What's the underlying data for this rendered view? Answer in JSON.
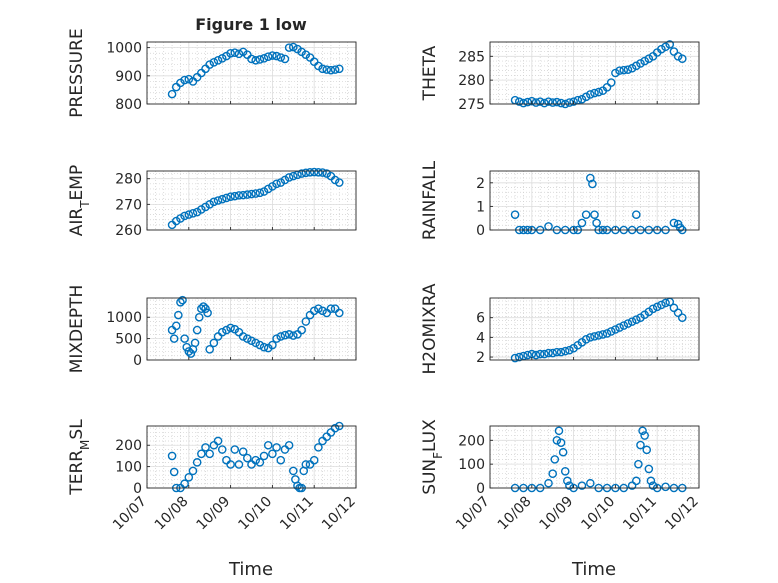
{
  "figure": {
    "title": "Figure 1 low",
    "xlabel": "Time",
    "x_ticks": [
      "10/07",
      "10/08",
      "10/09",
      "10/10",
      "10/11",
      "10/12"
    ],
    "marker_color": "#0072BD",
    "marker": "open-circle"
  },
  "chart_data": [
    {
      "type": "scatter",
      "ylabel": "PRESSURE",
      "title": "Figure 1 low",
      "xlim": [
        0,
        5
      ],
      "ylim": [
        800,
        1020
      ],
      "yticks": [
        800,
        900,
        1000
      ],
      "grid": true,
      "x": [
        0.6,
        0.7,
        0.8,
        0.9,
        1.0,
        1.1,
        1.2,
        1.3,
        1.4,
        1.5,
        1.6,
        1.7,
        1.8,
        1.9,
        2.0,
        2.1,
        2.2,
        2.3,
        2.4,
        2.5,
        2.6,
        2.7,
        2.8,
        2.9,
        3.0,
        3.1,
        3.2,
        3.3,
        3.4,
        3.5,
        3.6,
        3.7,
        3.8,
        3.9,
        4.0,
        4.1,
        4.2,
        4.3,
        4.4,
        4.5,
        4.6
      ],
      "y": [
        835,
        860,
        875,
        885,
        888,
        880,
        895,
        910,
        925,
        940,
        948,
        955,
        962,
        970,
        980,
        982,
        978,
        985,
        975,
        960,
        955,
        958,
        962,
        968,
        972,
        970,
        965,
        960,
        1000,
        1002,
        995,
        985,
        975,
        965,
        950,
        935,
        925,
        922,
        920,
        922,
        925
      ]
    },
    {
      "type": "scatter",
      "ylabel": "THETA",
      "xlim": [
        0,
        5
      ],
      "ylim": [
        275,
        288
      ],
      "yticks": [
        275,
        280,
        285
      ],
      "grid": true,
      "x": [
        0.6,
        0.7,
        0.8,
        0.9,
        1.0,
        1.1,
        1.2,
        1.3,
        1.4,
        1.5,
        1.6,
        1.7,
        1.8,
        1.9,
        2.0,
        2.1,
        2.2,
        2.3,
        2.4,
        2.5,
        2.6,
        2.7,
        2.8,
        2.9,
        3.0,
        3.1,
        3.2,
        3.3,
        3.4,
        3.5,
        3.6,
        3.7,
        3.8,
        3.9,
        4.0,
        4.1,
        4.2,
        4.3,
        4.4,
        4.5,
        4.6
      ],
      "y": [
        275.8,
        275.5,
        275.2,
        275.4,
        275.6,
        275.3,
        275.5,
        275.2,
        275.5,
        275.3,
        275.4,
        275.2,
        275.0,
        275.3,
        275.5,
        275.8,
        276.0,
        276.5,
        277.0,
        277.3,
        277.5,
        277.8,
        278.5,
        279.5,
        281.5,
        282.0,
        282.1,
        282.2,
        282.5,
        283.0,
        283.5,
        284.0,
        284.5,
        285.0,
        285.8,
        286.5,
        287.0,
        287.5,
        286.0,
        285.0,
        284.5
      ]
    },
    {
      "type": "scatter",
      "ylabel": "AIR_TEMP",
      "xlim": [
        0,
        5
      ],
      "ylim": [
        260,
        283
      ],
      "yticks": [
        260,
        270,
        280
      ],
      "grid": true,
      "x": [
        0.6,
        0.7,
        0.8,
        0.9,
        1.0,
        1.1,
        1.2,
        1.3,
        1.4,
        1.5,
        1.6,
        1.7,
        1.8,
        1.9,
        2.0,
        2.1,
        2.2,
        2.3,
        2.4,
        2.5,
        2.6,
        2.7,
        2.8,
        2.9,
        3.0,
        3.1,
        3.2,
        3.3,
        3.4,
        3.5,
        3.6,
        3.7,
        3.8,
        3.9,
        4.0,
        4.1,
        4.2,
        4.3,
        4.4,
        4.5,
        4.6
      ],
      "y": [
        262,
        263.5,
        264.5,
        265.5,
        266,
        266.5,
        267,
        268,
        269,
        270,
        271,
        271.5,
        272,
        272.5,
        273,
        273.2,
        273.5,
        273.6,
        273.8,
        274,
        274.2,
        274.5,
        275,
        276,
        277,
        278,
        278.5,
        279.5,
        280.5,
        281,
        281.5,
        282,
        282.3,
        282.5,
        282.6,
        282.5,
        282.4,
        282,
        281,
        279.5,
        278.5
      ]
    },
    {
      "type": "scatter",
      "ylabel": "RAINFALL",
      "xlim": [
        0,
        5
      ],
      "ylim": [
        0,
        2.5
      ],
      "yticks": [
        0,
        1,
        2
      ],
      "grid": true,
      "x": [
        0.6,
        0.7,
        0.8,
        0.9,
        1.0,
        1.2,
        1.4,
        1.6,
        1.8,
        2.0,
        2.1,
        2.2,
        2.3,
        2.4,
        2.45,
        2.5,
        2.55,
        2.6,
        2.7,
        2.8,
        3.0,
        3.2,
        3.4,
        3.5,
        3.6,
        3.8,
        4.0,
        4.2,
        4.4,
        4.5,
        4.55,
        4.6
      ],
      "y": [
        0.65,
        0,
        0,
        0,
        0,
        0,
        0.15,
        0,
        0,
        0,
        0,
        0.3,
        0.65,
        2.2,
        1.95,
        0.65,
        0.3,
        0,
        0,
        0,
        0,
        0,
        0,
        0.65,
        0,
        0,
        0,
        0,
        0.3,
        0.25,
        0.1,
        0
      ]
    },
    {
      "type": "scatter",
      "ylabel": "MIXDEPTH",
      "xlim": [
        0,
        5
      ],
      "ylim": [
        0,
        1450
      ],
      "yticks": [
        0,
        500,
        1000
      ],
      "grid": true,
      "x": [
        0.6,
        0.65,
        0.7,
        0.75,
        0.8,
        0.85,
        0.9,
        0.95,
        1.0,
        1.05,
        1.1,
        1.15,
        1.2,
        1.25,
        1.3,
        1.35,
        1.4,
        1.45,
        1.5,
        1.6,
        1.7,
        1.8,
        1.9,
        2.0,
        2.1,
        2.2,
        2.3,
        2.4,
        2.5,
        2.6,
        2.7,
        2.8,
        2.9,
        3.0,
        3.1,
        3.2,
        3.3,
        3.4,
        3.5,
        3.6,
        3.7,
        3.8,
        3.9,
        4.0,
        4.1,
        4.2,
        4.3,
        4.4,
        4.5,
        4.6
      ],
      "y": [
        700,
        500,
        800,
        1050,
        1350,
        1400,
        500,
        300,
        200,
        150,
        250,
        400,
        700,
        1000,
        1200,
        1250,
        1200,
        1100,
        250,
        400,
        550,
        650,
        700,
        750,
        720,
        650,
        550,
        500,
        450,
        400,
        350,
        300,
        280,
        350,
        500,
        550,
        580,
        600,
        570,
        600,
        700,
        900,
        1050,
        1150,
        1200,
        1150,
        1100,
        1200,
        1200,
        1100
      ]
    },
    {
      "type": "scatter",
      "ylabel": "H2OMIXRA",
      "xlim": [
        0,
        5
      ],
      "ylim": [
        1.7,
        8
      ],
      "yticks": [
        2,
        4,
        6
      ],
      "grid": true,
      "x": [
        0.6,
        0.7,
        0.8,
        0.9,
        1.0,
        1.1,
        1.2,
        1.3,
        1.4,
        1.5,
        1.6,
        1.7,
        1.8,
        1.9,
        2.0,
        2.1,
        2.2,
        2.3,
        2.4,
        2.5,
        2.6,
        2.7,
        2.8,
        2.9,
        3.0,
        3.1,
        3.2,
        3.3,
        3.4,
        3.5,
        3.6,
        3.7,
        3.8,
        3.9,
        4.0,
        4.1,
        4.2,
        4.3,
        4.4,
        4.5,
        4.6
      ],
      "y": [
        1.9,
        2.0,
        2.1,
        2.2,
        2.3,
        2.2,
        2.3,
        2.3,
        2.4,
        2.4,
        2.5,
        2.5,
        2.6,
        2.7,
        2.9,
        3.2,
        3.5,
        3.8,
        4.0,
        4.1,
        4.2,
        4.3,
        4.4,
        4.6,
        4.8,
        5.0,
        5.2,
        5.4,
        5.6,
        5.8,
        6.0,
        6.3,
        6.6,
        6.9,
        7.1,
        7.3,
        7.5,
        7.6,
        7.0,
        6.5,
        6.0
      ]
    },
    {
      "type": "scatter",
      "ylabel": "TERR_MSL",
      "xlim": [
        0,
        5
      ],
      "ylim": [
        0,
        290
      ],
      "yticks": [
        0,
        100,
        200
      ],
      "grid": true,
      "x": [
        0.6,
        0.65,
        0.7,
        0.8,
        0.9,
        1.0,
        1.1,
        1.2,
        1.3,
        1.4,
        1.5,
        1.6,
        1.7,
        1.8,
        1.9,
        2.0,
        2.1,
        2.2,
        2.3,
        2.4,
        2.5,
        2.6,
        2.7,
        2.8,
        2.9,
        3.0,
        3.1,
        3.2,
        3.3,
        3.4,
        3.5,
        3.55,
        3.6,
        3.65,
        3.7,
        3.75,
        3.8,
        3.9,
        4.0,
        4.1,
        4.2,
        4.3,
        4.4,
        4.5,
        4.6
      ],
      "y": [
        150,
        75,
        0,
        0,
        20,
        50,
        80,
        120,
        160,
        190,
        160,
        200,
        220,
        180,
        130,
        110,
        180,
        110,
        170,
        140,
        110,
        130,
        120,
        150,
        200,
        160,
        190,
        130,
        180,
        200,
        80,
        40,
        10,
        0,
        0,
        80,
        110,
        110,
        130,
        190,
        220,
        240,
        260,
        280,
        290
      ]
    },
    {
      "type": "scatter",
      "ylabel": "SUN_FLUX",
      "xlim": [
        0,
        5
      ],
      "ylim": [
        0,
        260
      ],
      "yticks": [
        0,
        100,
        200
      ],
      "grid": true,
      "x": [
        0.6,
        0.8,
        1.0,
        1.2,
        1.4,
        1.5,
        1.55,
        1.6,
        1.65,
        1.7,
        1.75,
        1.8,
        1.85,
        1.9,
        2.0,
        2.2,
        2.4,
        2.6,
        2.8,
        3.0,
        3.2,
        3.4,
        3.5,
        3.55,
        3.6,
        3.65,
        3.7,
        3.75,
        3.8,
        3.85,
        3.9,
        4.0,
        4.2,
        4.4,
        4.6
      ],
      "y": [
        0,
        0,
        0,
        0,
        20,
        60,
        120,
        200,
        240,
        190,
        150,
        70,
        30,
        10,
        0,
        10,
        20,
        0,
        0,
        0,
        0,
        10,
        30,
        100,
        180,
        240,
        220,
        160,
        80,
        30,
        10,
        0,
        5,
        0,
        0
      ]
    }
  ]
}
